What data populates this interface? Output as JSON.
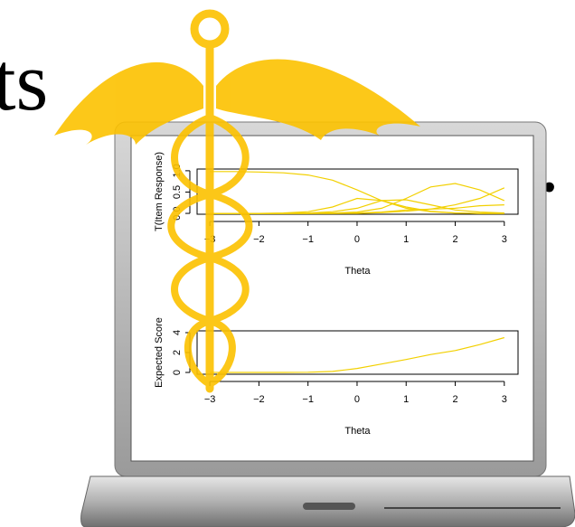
{
  "texts": [
    "ts",
    "."
  ],
  "chart_data": [
    {
      "type": "line",
      "xlabel": "Theta",
      "ylabel": "T(Item Response)",
      "x": [
        -3,
        -2.5,
        -2,
        -1.5,
        -1,
        -0.5,
        0,
        0.5,
        1,
        1.5,
        2,
        2.5,
        3
      ],
      "series": [
        {
          "color": "#f2d000",
          "values": [
            0.98,
            0.98,
            0.97,
            0.95,
            0.9,
            0.78,
            0.55,
            0.3,
            0.12,
            0.04,
            0.01,
            0,
            0
          ]
        },
        {
          "color": "#f2d000",
          "values": [
            0,
            0,
            0,
            0.01,
            0.04,
            0.15,
            0.35,
            0.3,
            0.15,
            0.05,
            0.01,
            0,
            0
          ]
        },
        {
          "color": "#f2d000",
          "values": [
            0,
            0,
            0,
            0,
            0.01,
            0.04,
            0.12,
            0.3,
            0.32,
            0.2,
            0.08,
            0.03,
            0.01
          ]
        },
        {
          "color": "#f2d000",
          "values": [
            0,
            0,
            0,
            0,
            0,
            0.01,
            0.03,
            0.12,
            0.35,
            0.62,
            0.7,
            0.55,
            0.3
          ]
        },
        {
          "color": "#f2d000",
          "values": [
            0,
            0,
            0,
            0,
            0,
            0,
            0,
            0.02,
            0.05,
            0.1,
            0.2,
            0.35,
            0.6
          ]
        },
        {
          "color": "#f2d000",
          "values": [
            0,
            0,
            0,
            0,
            0,
            0,
            0.01,
            0.03,
            0.08,
            0.1,
            0.12,
            0.18,
            0.2
          ]
        }
      ],
      "xlim": [
        -3.26,
        3.28
      ],
      "ylim": [
        -0.02,
        1.04
      ],
      "xticks": [
        {
          "value": -3,
          "label": "−3"
        },
        {
          "value": -2,
          "label": "−2"
        },
        {
          "value": -1,
          "label": "−1"
        },
        0,
        1,
        2,
        3
      ],
      "yticks": [
        {
          "value": 0,
          "label": "0.0"
        },
        {
          "value": 0.5,
          "label": "0.5"
        },
        {
          "value": 1,
          "label": "1.0"
        }
      ]
    },
    {
      "type": "line",
      "xlabel": "Theta",
      "ylabel": "Expected Score",
      "x": [
        -3,
        -2.5,
        -2,
        -1.5,
        -1,
        -0.5,
        0,
        0.5,
        1,
        1.5,
        2,
        2.5,
        3
      ],
      "series": [
        {
          "color": "#f2d000",
          "values": [
            0,
            0,
            0,
            0,
            0.02,
            0.1,
            0.4,
            0.85,
            1.3,
            1.8,
            2.2,
            2.8,
            3.5
          ]
        }
      ],
      "xlim": [
        -3.26,
        3.28
      ],
      "ylim": [
        -0.18,
        4.18
      ],
      "xticks": [
        {
          "value": -3,
          "label": "−3"
        },
        {
          "value": -2,
          "label": "−2"
        },
        {
          "value": -1,
          "label": "−1"
        },
        0,
        1,
        2,
        3
      ],
      "yticks": [
        0,
        2,
        4
      ]
    }
  ]
}
